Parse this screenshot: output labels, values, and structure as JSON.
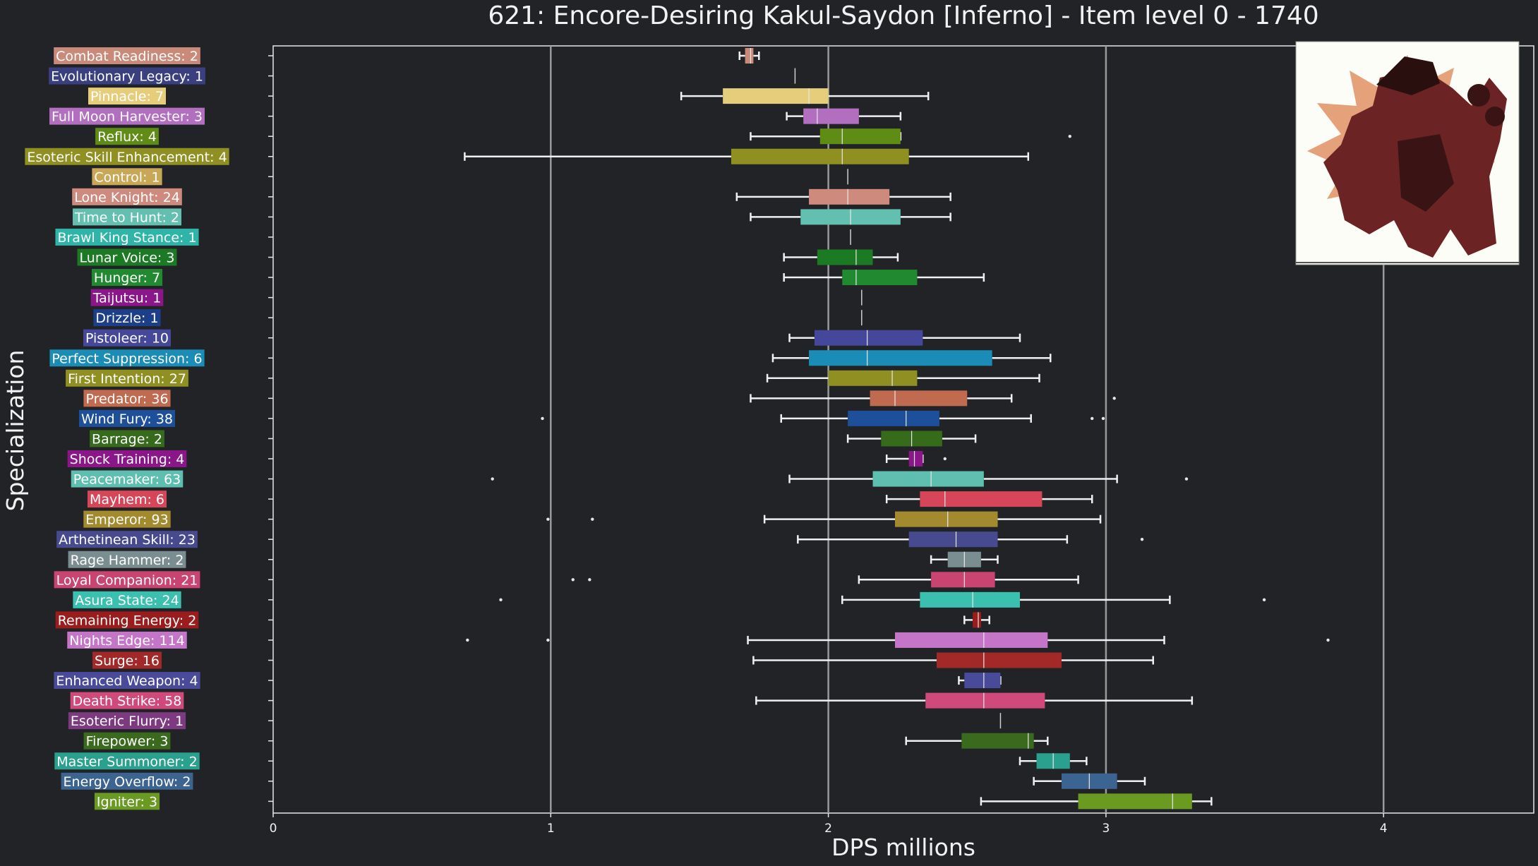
{
  "chart_data": {
    "type": "box",
    "title": "621: Encore-Desiring Kakul-Saydon [Inferno] - Item level 0 - 1740",
    "xlabel": "DPS millions",
    "ylabel": "Specialization",
    "xlim": [
      0,
      4.55
    ],
    "xticks": [
      0,
      1,
      2,
      3,
      4
    ],
    "grid": "vertical",
    "legend": "none",
    "image": "boss-portrait",
    "categories": [
      {
        "label": "Combat Readiness: 2",
        "color": "#c98a7a",
        "whislo": 1.68,
        "q1": 1.7,
        "med": 1.72,
        "q3": 1.73,
        "whishi": 1.75,
        "fliers": []
      },
      {
        "label": "Evolutionary Legacy: 1",
        "color": "#3a3f80",
        "whislo": 1.88,
        "q1": 1.88,
        "med": 1.88,
        "q3": 1.88,
        "whishi": 1.88,
        "fliers": []
      },
      {
        "label": "Pinnacle: 7",
        "color": "#e6cd7c",
        "whislo": 1.47,
        "q1": 1.62,
        "med": 1.93,
        "q3": 2.0,
        "whishi": 2.36,
        "fliers": []
      },
      {
        "label": "Full Moon Harvester: 3",
        "color": "#b26fbf",
        "whislo": 1.85,
        "q1": 1.91,
        "med": 1.96,
        "q3": 2.11,
        "whishi": 2.26,
        "fliers": []
      },
      {
        "label": "Reflux: 4",
        "color": "#5e8c14",
        "whislo": 1.72,
        "q1": 1.97,
        "med": 2.05,
        "q3": 2.26,
        "whishi": 2.26,
        "fliers": [
          2.87
        ]
      },
      {
        "label": "Esoteric Skill Enhancement: 4",
        "color": "#8f8f22",
        "whislo": 0.69,
        "q1": 1.65,
        "med": 2.05,
        "q3": 2.29,
        "whishi": 2.72,
        "fliers": []
      },
      {
        "label": "Control: 1",
        "color": "#c8a857",
        "whislo": 2.07,
        "q1": 2.07,
        "med": 2.07,
        "q3": 2.07,
        "whishi": 2.07,
        "fliers": []
      },
      {
        "label": "Lone Knight: 24",
        "color": "#cf8a7e",
        "whislo": 1.67,
        "q1": 1.93,
        "med": 2.07,
        "q3": 2.22,
        "whishi": 2.44,
        "fliers": []
      },
      {
        "label": "Time to Hunt: 2",
        "color": "#63c0b1",
        "whislo": 1.72,
        "q1": 1.9,
        "med": 2.08,
        "q3": 2.26,
        "whishi": 2.44,
        "fliers": []
      },
      {
        "label": "Brawl King Stance: 1",
        "color": "#2fb5a8",
        "whislo": 2.08,
        "q1": 2.08,
        "med": 2.08,
        "q3": 2.08,
        "whishi": 2.08,
        "fliers": []
      },
      {
        "label": "Lunar Voice: 3",
        "color": "#1c7a24",
        "whislo": 1.84,
        "q1": 1.96,
        "med": 2.1,
        "q3": 2.16,
        "whishi": 2.25,
        "fliers": []
      },
      {
        "label": "Hunger: 7",
        "color": "#218a30",
        "whislo": 1.84,
        "q1": 2.05,
        "med": 2.1,
        "q3": 2.32,
        "whishi": 2.56,
        "fliers": []
      },
      {
        "label": "Taijutsu: 1",
        "color": "#8a168a",
        "whislo": 2.12,
        "q1": 2.12,
        "med": 2.12,
        "q3": 2.12,
        "whishi": 2.12,
        "fliers": []
      },
      {
        "label": "Drizzle: 1",
        "color": "#1d3f8a",
        "whislo": 2.12,
        "q1": 2.12,
        "med": 2.12,
        "q3": 2.12,
        "whishi": 2.12,
        "fliers": []
      },
      {
        "label": "Pistoleer: 10",
        "color": "#45489a",
        "whislo": 1.86,
        "q1": 1.95,
        "med": 2.14,
        "q3": 2.34,
        "whishi": 2.69,
        "fliers": []
      },
      {
        "label": "Perfect Suppression: 6",
        "color": "#1a8cb5",
        "whislo": 1.8,
        "q1": 1.93,
        "med": 2.14,
        "q3": 2.59,
        "whishi": 2.8,
        "fliers": []
      },
      {
        "label": "First Intention: 27",
        "color": "#8f8f22",
        "whislo": 1.78,
        "q1": 2.0,
        "med": 2.23,
        "q3": 2.32,
        "whishi": 2.76,
        "fliers": []
      },
      {
        "label": "Predator: 36",
        "color": "#c06a4f",
        "whislo": 1.72,
        "q1": 2.15,
        "med": 2.24,
        "q3": 2.5,
        "whishi": 2.66,
        "fliers": [
          3.03
        ]
      },
      {
        "label": "Wind Fury: 38",
        "color": "#1d4f9a",
        "whislo": 1.83,
        "q1": 2.07,
        "med": 2.28,
        "q3": 2.4,
        "whishi": 2.73,
        "fliers": [
          0.97,
          2.95,
          2.99
        ]
      },
      {
        "label": "Barrage: 2",
        "color": "#356b1a",
        "whislo": 2.07,
        "q1": 2.19,
        "med": 2.3,
        "q3": 2.41,
        "whishi": 2.53,
        "fliers": []
      },
      {
        "label": "Shock Training: 4",
        "color": "#8a168a",
        "whislo": 2.21,
        "q1": 2.29,
        "med": 2.31,
        "q3": 2.34,
        "whishi": 2.34,
        "fliers": [
          2.42
        ]
      },
      {
        "label": "Peacemaker: 63",
        "color": "#5ebfb0",
        "whislo": 1.86,
        "q1": 2.16,
        "med": 2.37,
        "q3": 2.56,
        "whishi": 3.04,
        "fliers": [
          0.79,
          3.29
        ]
      },
      {
        "label": "Mayhem: 6",
        "color": "#d64558",
        "whislo": 2.21,
        "q1": 2.33,
        "med": 2.42,
        "q3": 2.77,
        "whishi": 2.95,
        "fliers": []
      },
      {
        "label": "Emperor: 93",
        "color": "#a48a2e",
        "whislo": 1.77,
        "q1": 2.24,
        "med": 2.43,
        "q3": 2.61,
        "whishi": 2.98,
        "fliers": [
          0.99,
          1.15
        ]
      },
      {
        "label": "Arthetinean Skill: 23",
        "color": "#474a8f",
        "whislo": 1.89,
        "q1": 2.29,
        "med": 2.46,
        "q3": 2.61,
        "whishi": 2.86,
        "fliers": [
          3.13
        ]
      },
      {
        "label": "Rage Hammer: 2",
        "color": "#7a8e92",
        "whislo": 2.37,
        "q1": 2.43,
        "med": 2.49,
        "q3": 2.55,
        "whishi": 2.61,
        "fliers": []
      },
      {
        "label": "Loyal Companion: 21",
        "color": "#c94471",
        "whislo": 2.11,
        "q1": 2.37,
        "med": 2.49,
        "q3": 2.6,
        "whishi": 2.9,
        "fliers": [
          1.08,
          1.14
        ]
      },
      {
        "label": "Asura State: 24",
        "color": "#3bc0b0",
        "whislo": 2.05,
        "q1": 2.33,
        "med": 2.52,
        "q3": 2.69,
        "whishi": 3.23,
        "fliers": [
          0.82,
          3.57
        ]
      },
      {
        "label": "Remaining Energy: 2",
        "color": "#9a1c1c",
        "whislo": 2.49,
        "q1": 2.52,
        "med": 2.54,
        "q3": 2.55,
        "whishi": 2.58,
        "fliers": []
      },
      {
        "label": "Nights Edge: 114",
        "color": "#c475c8",
        "whislo": 1.71,
        "q1": 2.24,
        "med": 2.56,
        "q3": 2.79,
        "whishi": 3.21,
        "fliers": [
          0.7,
          0.99,
          3.8
        ]
      },
      {
        "label": "Surge: 16",
        "color": "#a32828",
        "whislo": 1.73,
        "q1": 2.39,
        "med": 2.56,
        "q3": 2.84,
        "whishi": 3.17,
        "fliers": []
      },
      {
        "label": "Enhanced Weapon: 4",
        "color": "#4a4a9a",
        "whislo": 2.47,
        "q1": 2.49,
        "med": 2.56,
        "q3": 2.62,
        "whishi": 2.62,
        "fliers": []
      },
      {
        "label": "Death Strike: 58",
        "color": "#cf4a7a",
        "whislo": 1.74,
        "q1": 2.35,
        "med": 2.56,
        "q3": 2.78,
        "whishi": 3.31,
        "fliers": []
      },
      {
        "label": "Esoteric Flurry: 1",
        "color": "#7e3a80",
        "whislo": 2.62,
        "q1": 2.62,
        "med": 2.62,
        "q3": 2.62,
        "whishi": 2.62,
        "fliers": []
      },
      {
        "label": "Firepower: 3",
        "color": "#3a6a1e",
        "whislo": 2.28,
        "q1": 2.48,
        "med": 2.72,
        "q3": 2.74,
        "whishi": 2.79,
        "fliers": []
      },
      {
        "label": "Master Summoner: 2",
        "color": "#2aa08e",
        "whislo": 2.69,
        "q1": 2.75,
        "med": 2.81,
        "q3": 2.87,
        "whishi": 2.93,
        "fliers": []
      },
      {
        "label": "Energy Overflow: 2",
        "color": "#3c6490",
        "whislo": 2.74,
        "q1": 2.84,
        "med": 2.94,
        "q3": 3.04,
        "whishi": 3.14,
        "fliers": []
      },
      {
        "label": "Igniter: 3",
        "color": "#6a9a22",
        "whislo": 2.55,
        "q1": 2.9,
        "med": 3.24,
        "q3": 3.31,
        "whishi": 3.38,
        "fliers": []
      }
    ]
  }
}
